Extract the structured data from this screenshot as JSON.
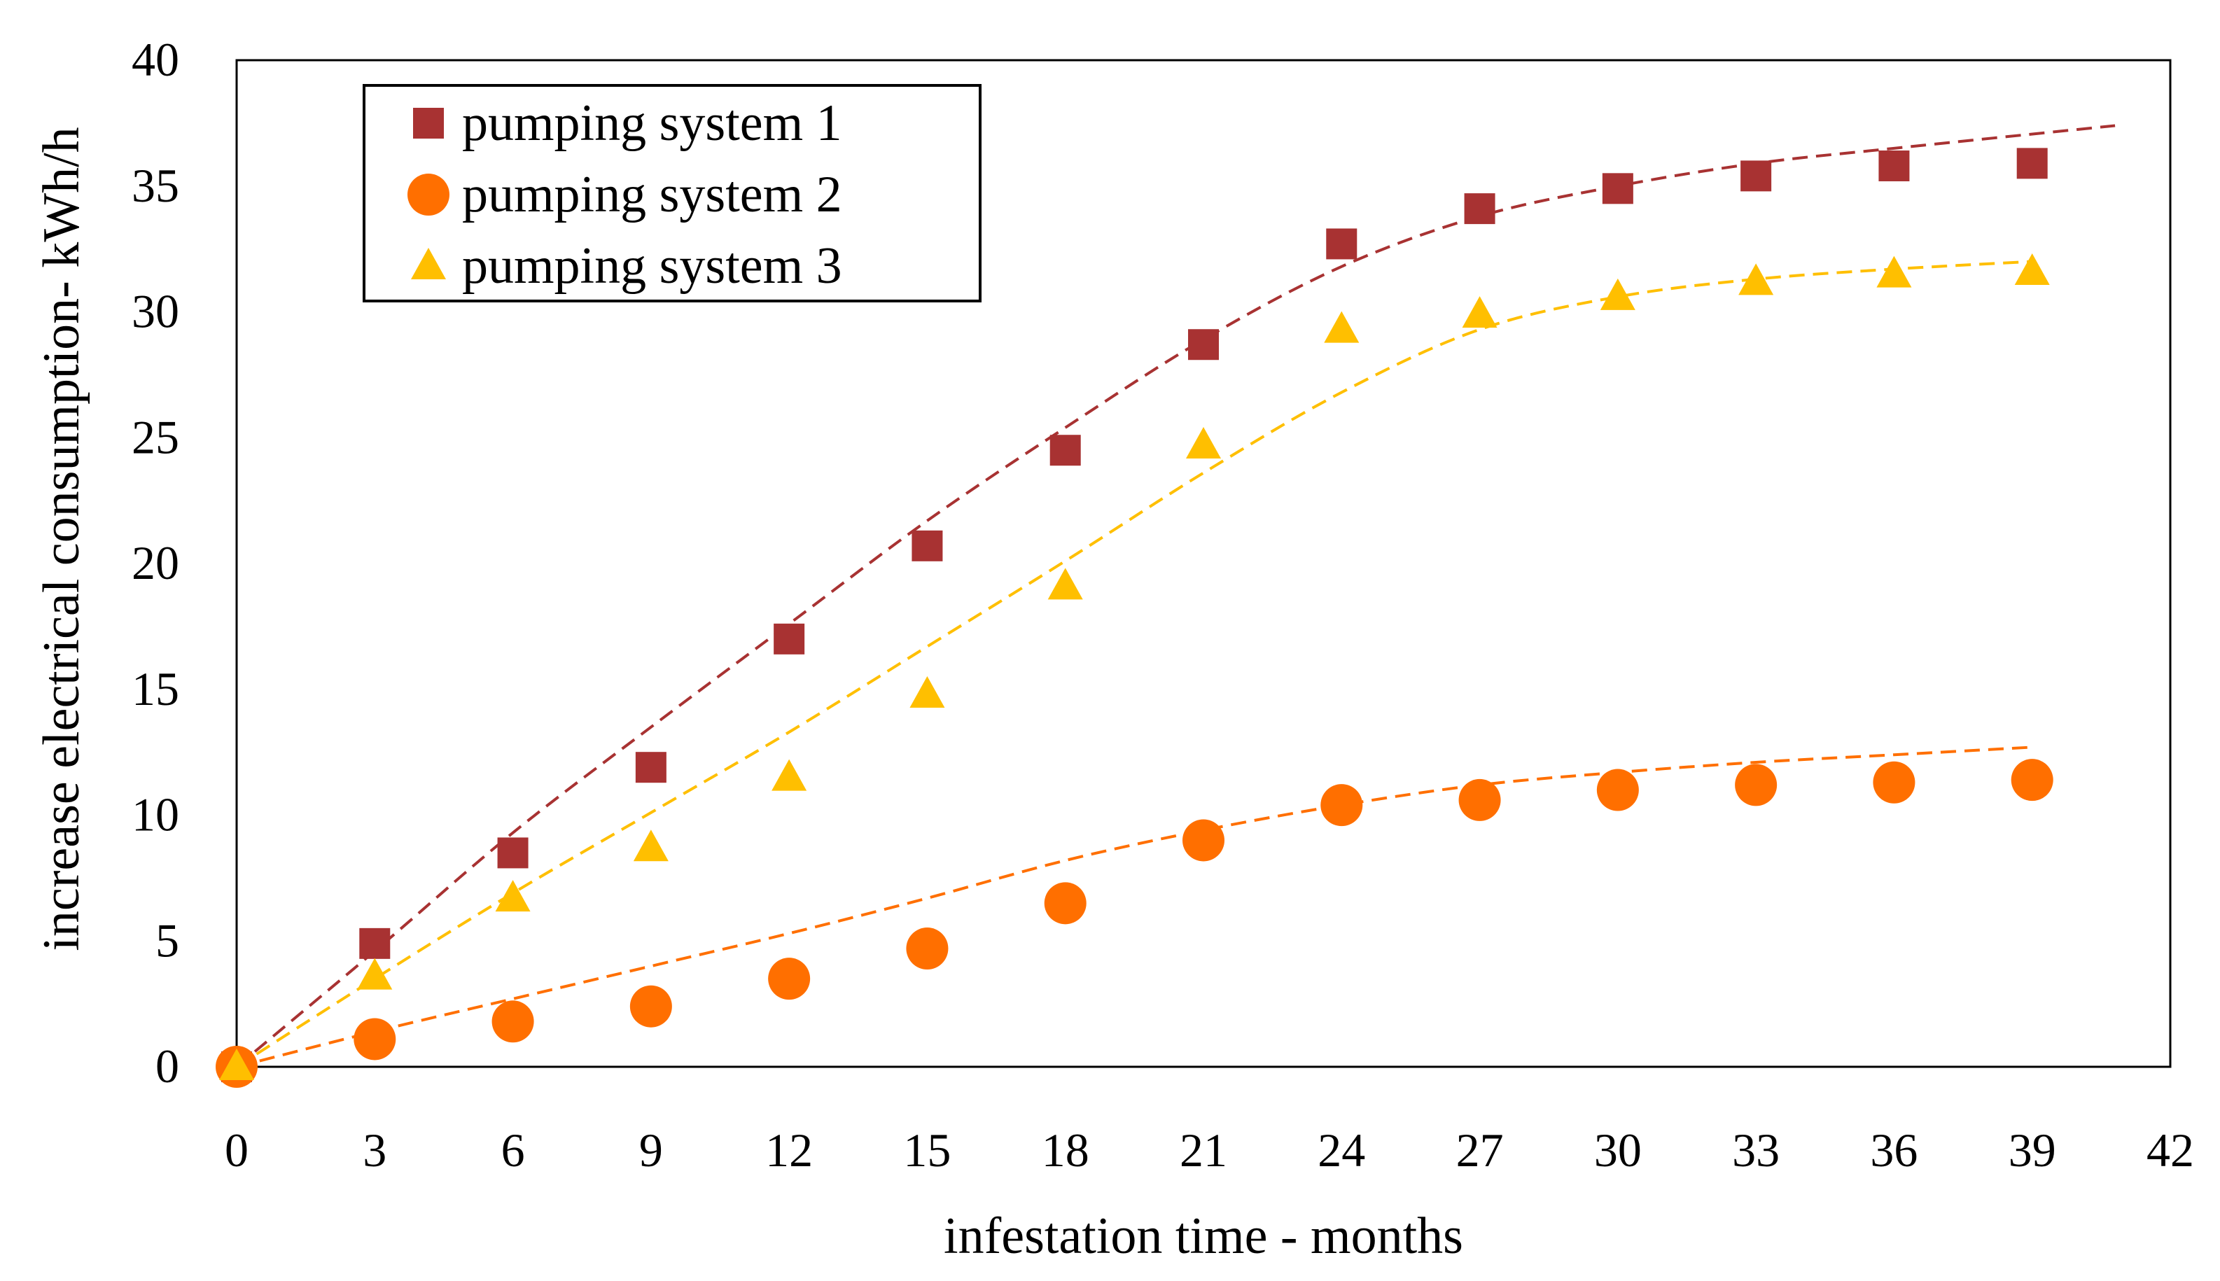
{
  "chart_data": {
    "type": "scatter",
    "title": "",
    "xlabel": "infestation time - months",
    "ylabel": "increase electrical consumption- kWh/h",
    "xlim": [
      0,
      42
    ],
    "ylim": [
      0,
      40
    ],
    "x_ticks": [
      0,
      3,
      6,
      9,
      12,
      15,
      18,
      21,
      24,
      27,
      30,
      33,
      36,
      39,
      42
    ],
    "y_ticks": [
      0,
      5,
      10,
      15,
      20,
      25,
      30,
      35,
      40
    ],
    "grid": false,
    "legend_position": "top-left",
    "trendlines": "dashed",
    "x": [
      0,
      3,
      6,
      9,
      12,
      15,
      18,
      21,
      24,
      27,
      30,
      33,
      36,
      39
    ],
    "series": [
      {
        "name": "pumping system 1",
        "marker": "square",
        "color": "#A83232",
        "values": [
          0,
          4.9,
          8.5,
          11.9,
          17.0,
          20.7,
          24.5,
          28.7,
          32.7,
          34.1,
          34.9,
          35.4,
          35.8,
          35.9
        ],
        "trend": [
          [
            0,
            0
          ],
          [
            3,
            4.6
          ],
          [
            6,
            9.3
          ],
          [
            9,
            13.5
          ],
          [
            12,
            17.6
          ],
          [
            15,
            21.7
          ],
          [
            18,
            25.4
          ],
          [
            21,
            28.9
          ],
          [
            24,
            31.8
          ],
          [
            27,
            33.8
          ],
          [
            30,
            35.0
          ],
          [
            33,
            35.9
          ],
          [
            36,
            36.5
          ],
          [
            40.8,
            37.4
          ]
        ]
      },
      {
        "name": "pumping system 2",
        "marker": "circle",
        "color": "#FF6F00",
        "values": [
          0,
          1.1,
          1.8,
          2.4,
          3.5,
          4.7,
          6.5,
          9.0,
          10.4,
          10.6,
          11.0,
          11.2,
          11.3,
          11.4
        ],
        "trend": [
          [
            0,
            0
          ],
          [
            3,
            1.4
          ],
          [
            6,
            2.7
          ],
          [
            9,
            4.0
          ],
          [
            12,
            5.3
          ],
          [
            15,
            6.7
          ],
          [
            18,
            8.2
          ],
          [
            21,
            9.4
          ],
          [
            24,
            10.4
          ],
          [
            27,
            11.2
          ],
          [
            30,
            11.7
          ],
          [
            33,
            12.1
          ],
          [
            36,
            12.4
          ],
          [
            39,
            12.7
          ]
        ]
      },
      {
        "name": "pumping system 3",
        "marker": "triangle",
        "color": "#FFBF00",
        "values": [
          0,
          3.6,
          6.7,
          8.7,
          11.5,
          14.8,
          19.1,
          24.7,
          29.3,
          29.9,
          30.6,
          31.2,
          31.5,
          31.6
        ],
        "trend": [
          [
            0,
            0
          ],
          [
            3,
            3.5
          ],
          [
            6,
            6.9
          ],
          [
            9,
            10.1
          ],
          [
            12,
            13.3
          ],
          [
            15,
            16.7
          ],
          [
            18,
            20.1
          ],
          [
            21,
            23.6
          ],
          [
            24,
            26.8
          ],
          [
            27,
            29.3
          ],
          [
            30,
            30.6
          ],
          [
            33,
            31.3
          ],
          [
            36,
            31.7
          ],
          [
            39,
            32.0
          ]
        ]
      }
    ]
  }
}
